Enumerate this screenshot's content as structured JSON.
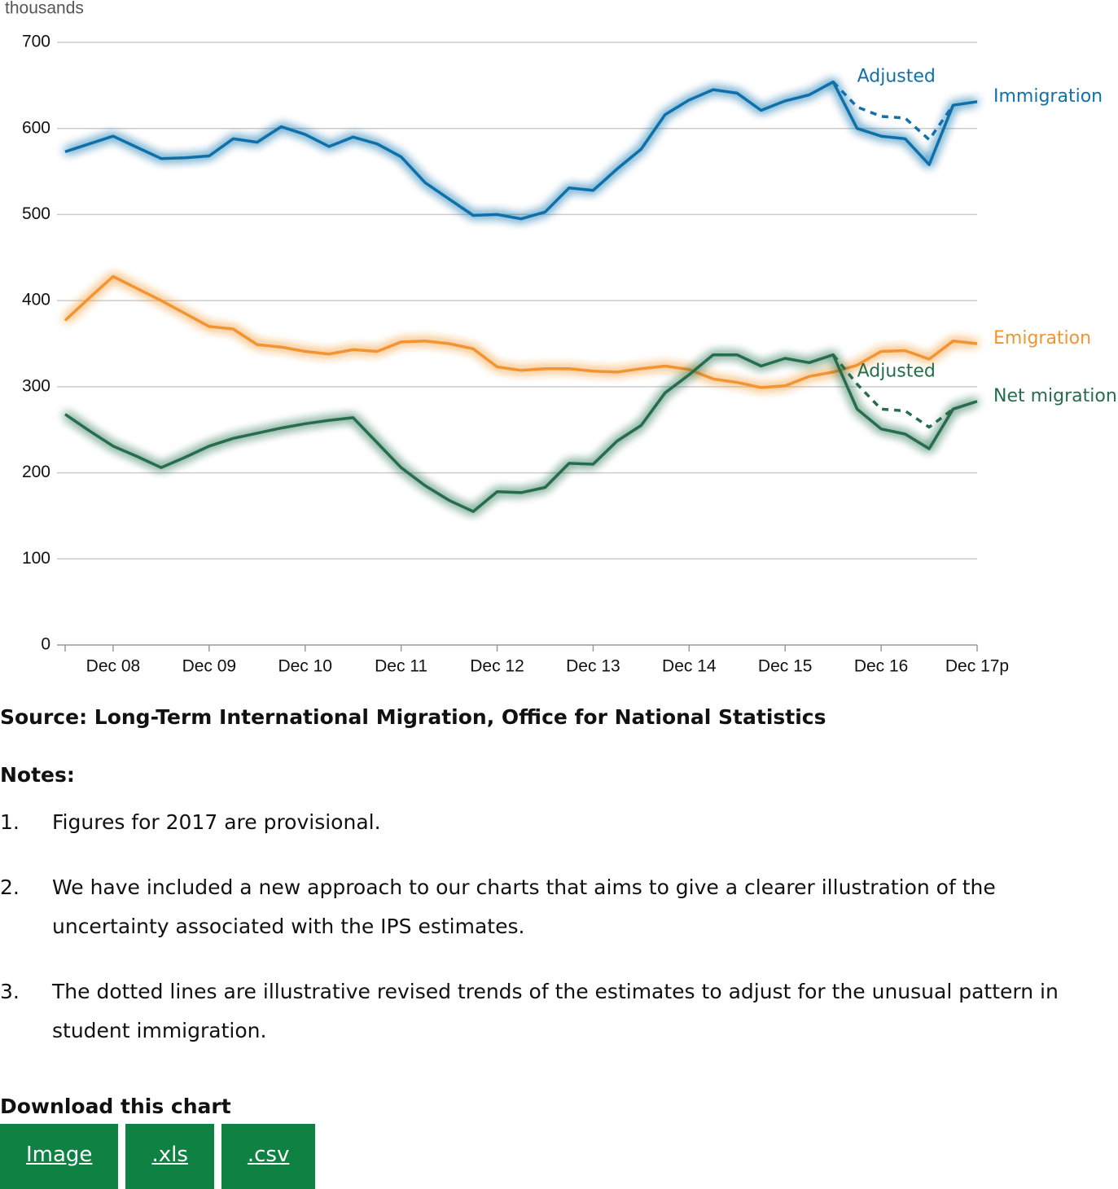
{
  "chart_data": {
    "type": "line",
    "y_label": "thousands",
    "categories": [
      null,
      null,
      "Dec 08",
      null,
      null,
      null,
      "Dec 09",
      null,
      null,
      null,
      "Dec 10",
      null,
      null,
      null,
      "Dec 11",
      null,
      null,
      null,
      "Dec 12",
      null,
      null,
      null,
      "Dec 13",
      null,
      null,
      null,
      "Dec 14",
      null,
      null,
      null,
      "Dec 15",
      null,
      null,
      null,
      "Dec 16",
      null,
      null,
      null,
      "Dec 17p"
    ],
    "ylim": [
      0,
      700
    ],
    "yticks": [
      0,
      100,
      200,
      300,
      400,
      500,
      600,
      700
    ],
    "grid": true,
    "series": [
      {
        "name": "Immigration",
        "color": "#1170aa",
        "style": "solid",
        "values": [
          573,
          582,
          591,
          578,
          565,
          566,
          568,
          588,
          584,
          602,
          593,
          579,
          590,
          582,
          567,
          537,
          518,
          499,
          500,
          495,
          503,
          531,
          528,
          553,
          576,
          616,
          633,
          645,
          641,
          621,
          632,
          639,
          654,
          600,
          591,
          588,
          558,
          627,
          631
        ]
      },
      {
        "name": "Adjusted",
        "color": "#1170aa",
        "style": "dashed",
        "values": [
          null,
          null,
          null,
          null,
          null,
          null,
          null,
          null,
          null,
          null,
          null,
          null,
          null,
          null,
          null,
          null,
          null,
          null,
          null,
          null,
          null,
          null,
          null,
          null,
          null,
          null,
          null,
          null,
          null,
          null,
          null,
          null,
          654,
          625,
          614,
          612,
          587,
          627,
          null
        ]
      },
      {
        "name": "Emigration",
        "color": "#f39431",
        "style": "solid",
        "values": [
          377,
          403,
          428,
          414,
          400,
          385,
          370,
          367,
          349,
          346,
          341,
          338,
          343,
          341,
          352,
          353,
          350,
          344,
          323,
          319,
          321,
          321,
          318,
          317,
          321,
          324,
          320,
          309,
          305,
          299,
          301,
          312,
          317,
          325,
          341,
          342,
          332,
          353,
          350
        ]
      },
      {
        "name": "Net migration",
        "color": "#266d4c",
        "style": "solid",
        "values": [
          268,
          249,
          231,
          219,
          206,
          218,
          231,
          240,
          246,
          252,
          257,
          261,
          264,
          235,
          206,
          185,
          168,
          155,
          178,
          177,
          183,
          211,
          210,
          237,
          255,
          293,
          314,
          337,
          337,
          324,
          333,
          328,
          337,
          274,
          251,
          245,
          228,
          274,
          283
        ]
      },
      {
        "name": "Adjusted",
        "color": "#266d4c",
        "style": "dashed",
        "values": [
          null,
          null,
          null,
          null,
          null,
          null,
          null,
          null,
          null,
          null,
          null,
          null,
          null,
          null,
          null,
          null,
          null,
          null,
          null,
          null,
          null,
          null,
          null,
          null,
          null,
          null,
          null,
          null,
          null,
          null,
          null,
          null,
          337,
          303,
          274,
          272,
          253,
          274,
          null
        ]
      }
    ]
  },
  "source": "Source: Long-Term International Migration, Office for National Statistics",
  "notes": {
    "title": "Notes:",
    "items": [
      {
        "marker": "1.",
        "text": "Figures for 2017 are provisional."
      },
      {
        "marker": "2.",
        "text": "We have included a new approach to our charts that aims to give a clearer illustration of the uncertainty associated with the IPS estimates."
      },
      {
        "marker": "3.",
        "text": "The dotted lines are illustrative revised trends of the estimates to adjust for the unusual pattern in student immigration."
      }
    ]
  },
  "download": {
    "title": "Download this chart",
    "buttons": [
      "Image",
      ".xls",
      ".csv"
    ]
  }
}
